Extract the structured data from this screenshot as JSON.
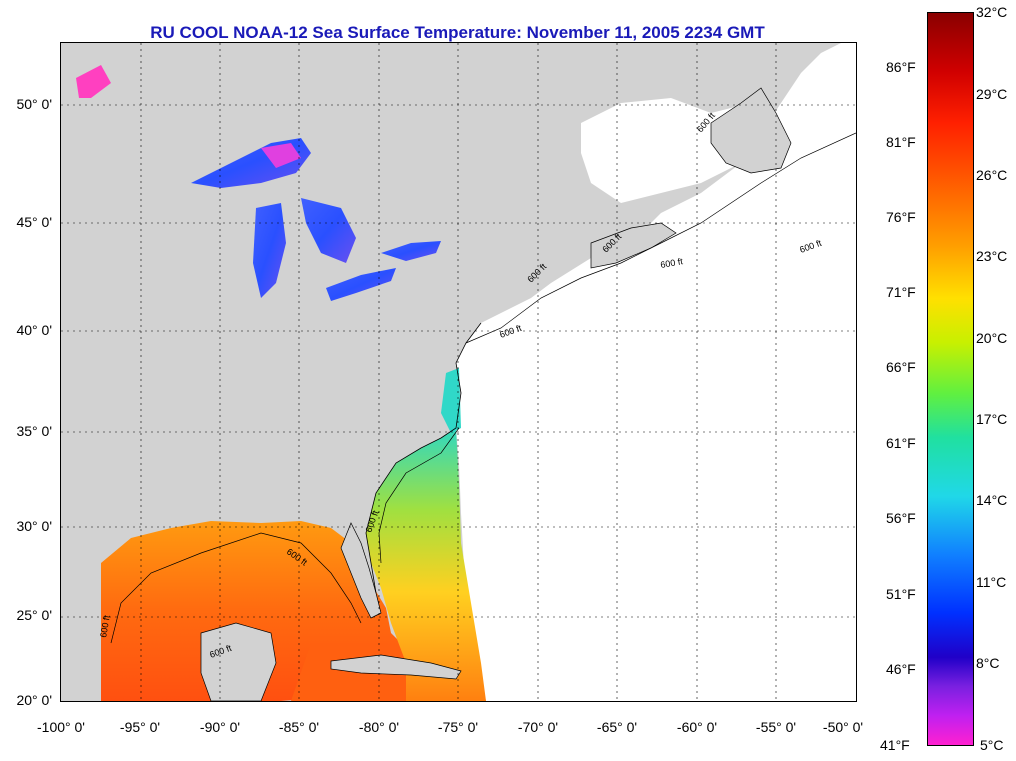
{
  "title": "RU COOL  NOAA-12  Sea Surface Temperature:  November 11, 2005 2234 GMT",
  "latitude_labels": [
    "50° 0'",
    "45° 0'",
    "40° 0'",
    "35° 0'",
    "30° 0'",
    "25° 0'",
    "20° 0'"
  ],
  "longitude_labels": [
    "-100° 0'",
    "-95° 0'",
    "-90° 0'",
    "-85° 0'",
    "-80° 0'",
    "-75° 0'",
    "-70° 0'",
    "-65° 0'",
    "-60° 0'",
    "-55° 0'",
    "-50° 0'"
  ],
  "contour_labels": [
    "600 ft",
    "600 ft",
    "600 ft",
    "600 ft",
    "600 ft",
    "600 ft",
    "600 ft",
    "600 ft",
    "600 ft",
    "600 ft"
  ],
  "colorbar": {
    "celsius_labels": [
      "32°C",
      "29°C",
      "26°C",
      "23°C",
      "20°C",
      "17°C",
      "14°C",
      "11°C",
      "8°C",
      "5°C"
    ],
    "fahrenheit_labels": [
      "86°F",
      "81°F",
      "76°F",
      "71°F",
      "66°F",
      "61°F",
      "56°F",
      "51°F",
      "46°F",
      "41°F"
    ]
  },
  "colors": {
    "title": "#1a1ab8",
    "land": "#d2d2d2",
    "ocean_no_data": "#ffffff",
    "warm_sst": "#ff7a10",
    "lake_sst": "#3050ff"
  }
}
